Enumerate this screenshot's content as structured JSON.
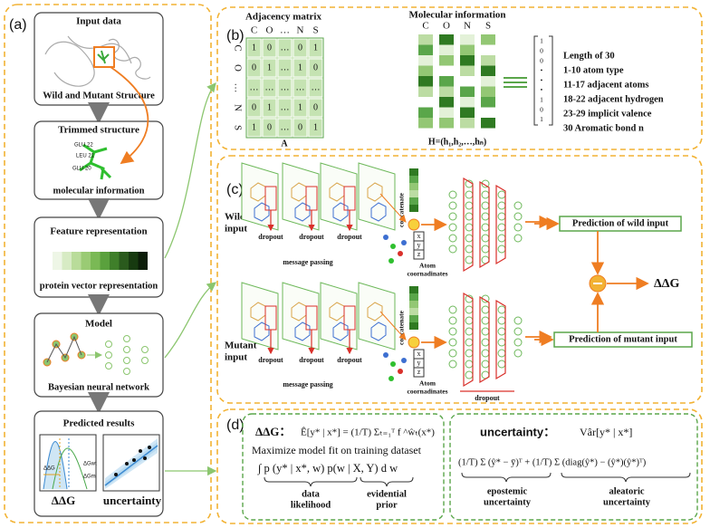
{
  "panel_a": {
    "label": "(a)",
    "input": {
      "title": "Input  data",
      "caption": "Wild and Mutant Structure"
    },
    "trimmed": {
      "title": "Trimmed  structure",
      "caption": "molecular information",
      "residues": [
        "GLU 22",
        "LEU 21",
        "GLU 20"
      ]
    },
    "feature": {
      "title": "Feature representation",
      "caption": "protein vector representation"
    },
    "model": {
      "title": "Model",
      "caption": "Bayesian neural network"
    },
    "results": {
      "title": "Predicted results",
      "ddg": "ΔΔG",
      "uncertainty": "uncertainty",
      "plot_labels": [
        "ΔGwt",
        "ΔGm",
        "ΔΔG"
      ]
    }
  },
  "panel_b": {
    "label": "(b)",
    "matrix_title": "Adjacency matrix",
    "matrix_name": "A",
    "atoms": [
      "C",
      "O",
      "…",
      "N",
      "S"
    ],
    "matrix_rows": [
      [
        "1",
        "0",
        "…",
        "0",
        "1"
      ],
      [
        "0",
        "1",
        "…",
        "1",
        "0"
      ],
      [
        "…",
        "…",
        "…",
        "…",
        "…"
      ],
      [
        "0",
        "1",
        "…",
        "1",
        "0"
      ],
      [
        "1",
        "0",
        "…",
        "0",
        "1"
      ]
    ],
    "info_title": "Molecular information",
    "info_columns": [
      "C",
      "O",
      "N",
      "S"
    ],
    "info_formula": "H=(h₁,h₂,…,hₙ)",
    "vector": [
      "1",
      "0",
      "0",
      "•",
      "•",
      "•",
      "1",
      "0",
      "1"
    ],
    "features": [
      "Length of 30",
      "1-10    atom type",
      "11-17  adjacent atoms",
      "18-22  adjacent hydrogen",
      "23-29  implicit valence",
      "30      Aromatic bond n"
    ]
  },
  "panel_c": {
    "label": "(c)",
    "wild_input": [
      "Wild",
      "input"
    ],
    "mutant_input": [
      "Mutant",
      "input"
    ],
    "dropout": "dropout",
    "message_passing": "message passing",
    "concatenate": "concatenate",
    "atom_coordinates": [
      "Atom",
      "coornadinates"
    ],
    "xyz": [
      "x",
      "y",
      "z"
    ],
    "prediction_wild": "Prediction of wild input",
    "prediction_mutant": "Prediction of mutant input",
    "ddg": "ΔΔG"
  },
  "panel_d": {
    "label": "(d)",
    "ddg_head": "ΔΔG：",
    "ddg_equation": "Ê[y* | x*] = (1/T) Σₜ₌₁ᵀ f ^ŵₜ(x*)",
    "maximize": "Maximize model fit on training dataset",
    "integral": "∫ p (y* | x*, w) p(w | X, Y) d w",
    "data_likelihood": [
      "data",
      "likelihood"
    ],
    "evidential_prior": [
      "evidential",
      "prior"
    ],
    "uncertainty_head": "uncertainty：",
    "var_equation": "Vâr[y* | x*]",
    "var_formula": "(1/T) Σ (ŷ* − ȳ)ᵀ + (1/T) Σ (diag(ŷ*) − (ŷ*)(ŷ*)ᵀ)",
    "epistemic": [
      "epostemic",
      "uncertainty"
    ],
    "aleatoric": [
      "aleatoric",
      "uncertainty"
    ]
  }
}
